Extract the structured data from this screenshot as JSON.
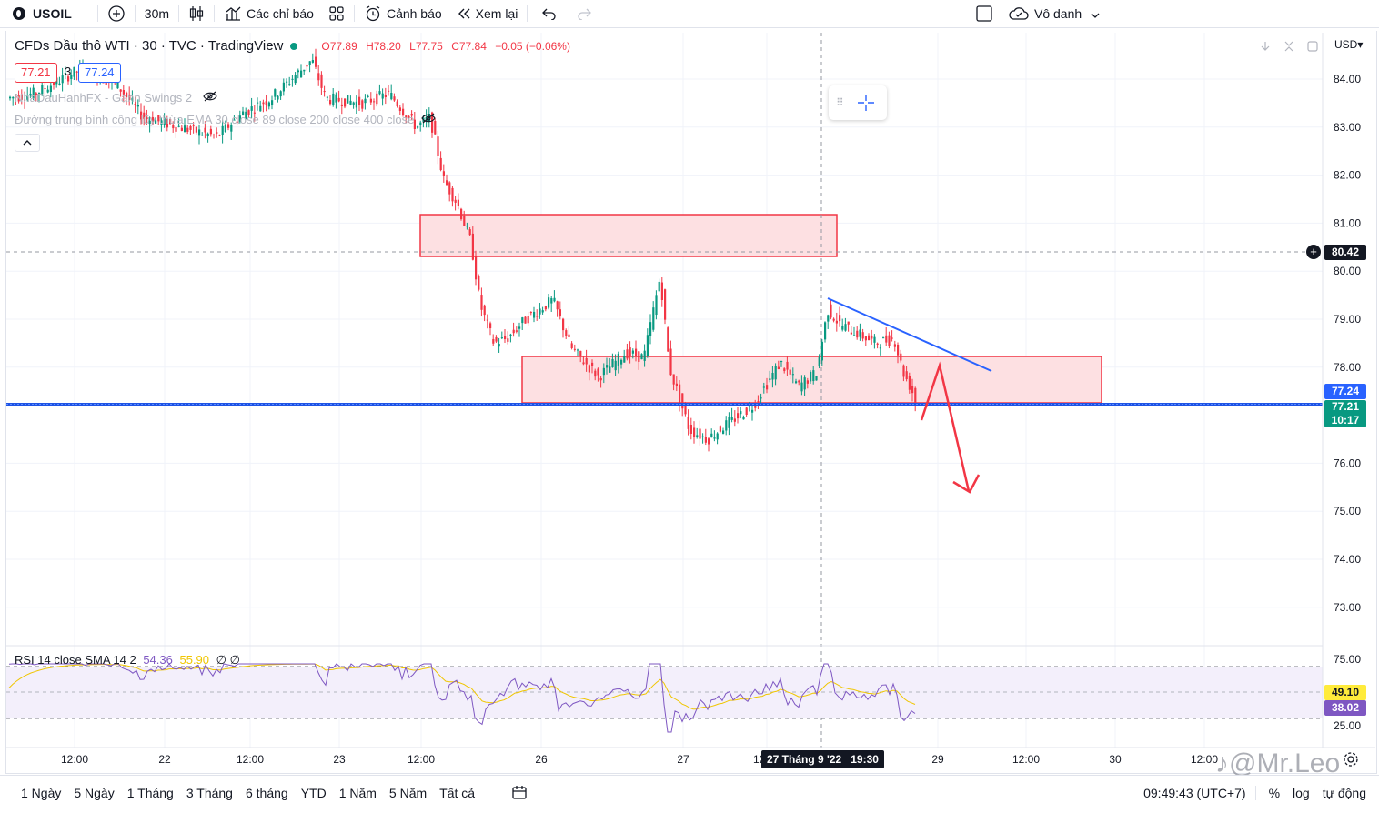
{
  "toolbar": {
    "symbol": "USOIL",
    "interval": "30m",
    "indicators_label": "Các chỉ báo",
    "alert_label": "Cảnh báo",
    "replay_label": "Xem lại",
    "layout_name": "Vô danh"
  },
  "legend": {
    "title": "CFDs Dầu thô WTI · 30 · TVC · TradingView",
    "open": "O77.89",
    "high": "H78.20",
    "low": "L77.75",
    "close": "C77.84",
    "change": "−0.05 (−0.06%)",
    "bid": "77.21",
    "spread": "3",
    "ask": "77.24",
    "indicator1": "NhaDauHanhFX - Gann Swings 2",
    "indicator2": "Đường trung bình cộng lũy thừa EMA 30 close 89 close 200 close 400 close"
  },
  "price_axis": {
    "currency": "USD",
    "ticks": [
      "84.00",
      "83.00",
      "82.00",
      "81.00",
      "80.00",
      "79.00",
      "78.00",
      "76.00",
      "75.00",
      "74.00",
      "73.00"
    ],
    "crosshair_price": "80.42",
    "ask_label": "77.24",
    "last_label": "77.21",
    "countdown": "10:17",
    "colors": {
      "ask": "#2962ff",
      "last": "#089981"
    }
  },
  "rsi": {
    "label": "RSI 14 close SMA 14 2",
    "value1": "54.36",
    "value2": "55.90",
    "nulls": "∅ ∅",
    "ticks": [
      "75.00",
      "25.00"
    ],
    "rsi_label": "49.10",
    "sma_label": "38.02",
    "colors": {
      "rsi": "#7e57c2",
      "sma": "#f0c600"
    }
  },
  "time_axis": {
    "ticks": [
      "12:00",
      "22",
      "12:00",
      "23",
      "12:00",
      "26",
      "27",
      "12:00",
      "29",
      "12:00",
      "30",
      "12:00"
    ],
    "crosshair_label": "27 Tháng 9 '22   19:30"
  },
  "bottom": {
    "ranges": [
      "1 Ngày",
      "5 Ngày",
      "1 Tháng",
      "3 Tháng",
      "6 tháng",
      "YTD",
      "1 Năm",
      "5 Năm",
      "Tất cả"
    ],
    "clock": "09:49:43 (UTC+7)",
    "percent": "%",
    "log": "log",
    "auto": "tự động"
  },
  "watermark": "@Mr.Leo",
  "colors": {
    "up": "#089981",
    "down": "#f23645",
    "zone_fill": "#fde0e2",
    "zone_stroke": "#f23645",
    "trendline": "#2962ff",
    "support": "#1e53e5",
    "arrow": "#f23645"
  }
}
